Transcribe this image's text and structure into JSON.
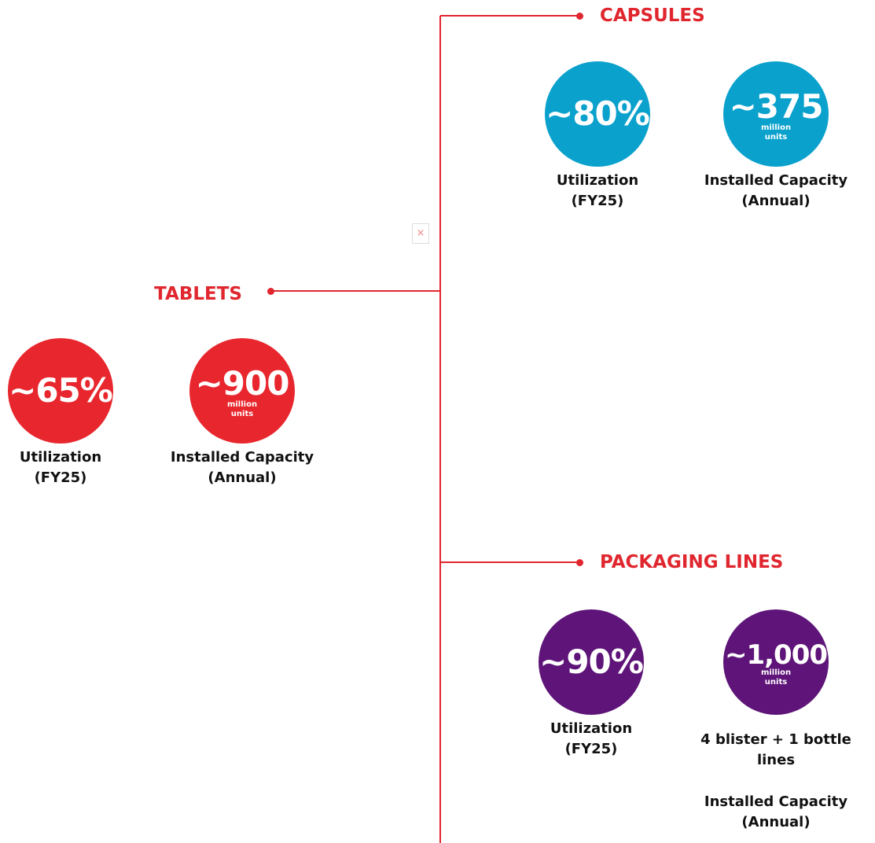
{
  "sections": [
    {
      "title": "CAPSULES",
      "metrics": [
        {
          "value": "~80%",
          "label": [
            "Utilization",
            "(FY25)"
          ]
        },
        {
          "value": "~375",
          "unit": [
            "million",
            "units"
          ],
          "label": [
            "Installed Capacity",
            "(Annual)"
          ]
        }
      ]
    },
    {
      "title": "TABLETS",
      "metrics": [
        {
          "value": "~65%",
          "label": [
            "Utilization",
            "(FY25)"
          ]
        },
        {
          "value": "~900",
          "unit": [
            "million",
            "units"
          ],
          "label": [
            "Installed Capacity",
            "(Annual)"
          ]
        }
      ]
    },
    {
      "title": "PACKAGING LINES",
      "metrics": [
        {
          "value": "~90%",
          "label": [
            "Utilization",
            "(FY25)"
          ]
        },
        {
          "value": "~1,000",
          "unit": [
            "million",
            "units"
          ],
          "note": [
            "4 blister + 1 bottle",
            "lines"
          ],
          "label": [
            "Installed Capacity",
            "(Annual)"
          ]
        }
      ]
    }
  ]
}
